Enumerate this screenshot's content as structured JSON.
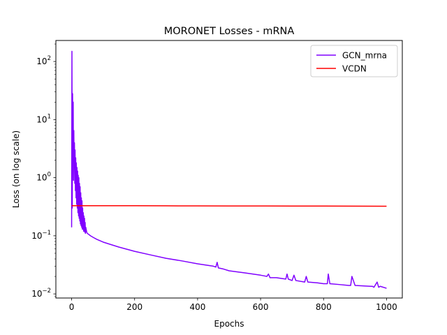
{
  "chart_data": {
    "type": "line",
    "title": "MORONET Losses - mRNA",
    "xlabel": "Epochs",
    "ylabel": "Loss (on log scale)",
    "xlim": [
      -50,
      1050
    ],
    "ylim": [
      0.0085,
      230
    ],
    "yscale": "log",
    "grid": false,
    "legend": "top-right",
    "xticks": [
      0,
      200,
      400,
      600,
      800,
      1000
    ],
    "xtick_labels": [
      "0",
      "200",
      "400",
      "600",
      "800",
      "1000"
    ],
    "yticks": [
      0.01,
      0.1,
      1,
      10,
      100
    ],
    "ytick_labels": [
      {
        "base": "10",
        "exp": "−2"
      },
      {
        "base": "10",
        "exp": "−1"
      },
      {
        "base": "10",
        "exp": "0"
      },
      {
        "base": "10",
        "exp": "1"
      },
      {
        "base": "10",
        "exp": "2"
      }
    ],
    "series": [
      {
        "name": "GCN_mrna",
        "color": "#8000ff",
        "x": [
          0,
          1,
          2,
          3,
          4,
          5,
          6,
          7,
          8,
          9,
          10,
          11,
          12,
          13,
          14,
          15,
          16,
          17,
          18,
          19,
          20,
          21,
          22,
          23,
          24,
          25,
          26,
          27,
          28,
          29,
          30,
          31,
          32,
          33,
          34,
          35,
          36,
          37,
          38,
          39,
          40,
          41,
          42,
          43,
          44,
          45,
          48,
          50,
          55,
          60,
          70,
          80,
          100,
          120,
          150,
          200,
          250,
          300,
          350,
          400,
          450,
          458,
          462,
          466,
          480,
          500,
          550,
          600,
          620,
          625,
          630,
          650,
          680,
          684,
          688,
          700,
          706,
          712,
          740,
          745,
          750,
          780,
          800,
          812,
          815,
          820,
          850,
          880,
          886,
          890,
          900,
          950,
          955,
          960,
          970,
          975,
          980,
          1000
        ],
        "y": [
          0.14,
          150,
          0.3,
          28,
          2.0,
          20,
          0.9,
          6.5,
          1.5,
          4.0,
          0.8,
          3.0,
          0.6,
          2.2,
          0.45,
          1.8,
          0.35,
          1.5,
          0.3,
          1.3,
          0.25,
          1.1,
          0.22,
          1.0,
          0.2,
          0.8,
          0.18,
          0.7,
          0.16,
          0.55,
          0.15,
          0.45,
          0.14,
          0.4,
          0.13,
          0.3,
          0.13,
          0.25,
          0.12,
          0.22,
          0.12,
          0.2,
          0.115,
          0.17,
          0.11,
          0.14,
          0.115,
          0.11,
          0.105,
          0.1,
          0.093,
          0.087,
          0.078,
          0.072,
          0.064,
          0.054,
          0.047,
          0.041,
          0.037,
          0.033,
          0.03,
          0.029,
          0.035,
          0.028,
          0.027,
          0.025,
          0.023,
          0.021,
          0.02,
          0.022,
          0.019,
          0.019,
          0.018,
          0.022,
          0.018,
          0.017,
          0.021,
          0.017,
          0.016,
          0.02,
          0.016,
          0.0155,
          0.015,
          0.015,
          0.022,
          0.015,
          0.0145,
          0.014,
          0.014,
          0.02,
          0.014,
          0.0135,
          0.0135,
          0.013,
          0.016,
          0.013,
          0.0135,
          0.0125
        ]
      },
      {
        "name": "VCDN",
        "color": "#ff0000",
        "x": [
          0,
          100,
          200,
          300,
          400,
          500,
          600,
          700,
          800,
          900,
          1000
        ],
        "y": [
          0.33,
          0.33,
          0.329,
          0.328,
          0.327,
          0.326,
          0.326,
          0.325,
          0.325,
          0.324,
          0.323
        ]
      }
    ]
  }
}
